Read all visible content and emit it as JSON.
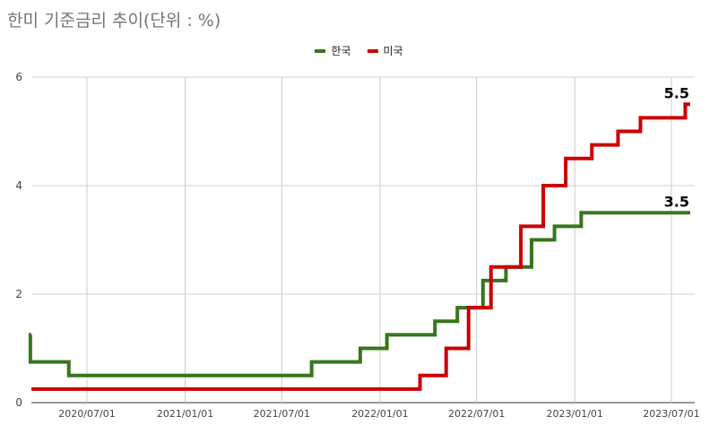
{
  "title": "한미 기준금리 추이(단위 : %)",
  "legend": [
    {
      "label": "한국",
      "color": "#38761d"
    },
    {
      "label": "미국",
      "color": "#cc0000"
    }
  ],
  "chart_data": {
    "type": "line",
    "title": "한미 기준금리 추이(단위 : %)",
    "xlabel": "",
    "ylabel": "",
    "ylim": [
      0,
      6
    ],
    "yticks": [
      0,
      2,
      4,
      6
    ],
    "xticks": [
      "2020/07/01",
      "2021/01/01",
      "2021/07/01",
      "2022/01/01",
      "2022/07/01",
      "2023/01/01",
      "2023/07/01"
    ],
    "xrange": [
      "2020/03/01",
      "2023/08/01"
    ],
    "grid": true,
    "legend_position": "top",
    "series": [
      {
        "name": "한국",
        "color": "#38761d",
        "step": true,
        "points": [
          {
            "x": "2020/03/01",
            "y": 1.25
          },
          {
            "x": "2020/03/17",
            "y": 0.75
          },
          {
            "x": "2020/05/28",
            "y": 0.5
          },
          {
            "x": "2021/08/26",
            "y": 0.75
          },
          {
            "x": "2021/11/25",
            "y": 1.0
          },
          {
            "x": "2022/01/14",
            "y": 1.25
          },
          {
            "x": "2022/04/14",
            "y": 1.5
          },
          {
            "x": "2022/05/26",
            "y": 1.75
          },
          {
            "x": "2022/07/13",
            "y": 2.25
          },
          {
            "x": "2022/08/25",
            "y": 2.5
          },
          {
            "x": "2022/10/12",
            "y": 3.0
          },
          {
            "x": "2022/11/24",
            "y": 3.25
          },
          {
            "x": "2023/01/13",
            "y": 3.5
          },
          {
            "x": "2023/08/01",
            "y": 3.5
          }
        ],
        "end_label": "3.5"
      },
      {
        "name": "미국",
        "color": "#cc0000",
        "step": true,
        "points": [
          {
            "x": "2020/03/01",
            "y": 0.25
          },
          {
            "x": "2022/03/17",
            "y": 0.5
          },
          {
            "x": "2022/05/05",
            "y": 1.0
          },
          {
            "x": "2022/06/16",
            "y": 1.75
          },
          {
            "x": "2022/07/28",
            "y": 2.5
          },
          {
            "x": "2022/09/22",
            "y": 3.25
          },
          {
            "x": "2022/11/03",
            "y": 4.0
          },
          {
            "x": "2022/12/15",
            "y": 4.5
          },
          {
            "x": "2023/02/02",
            "y": 4.75
          },
          {
            "x": "2023/03/23",
            "y": 5.0
          },
          {
            "x": "2023/05/04",
            "y": 5.25
          },
          {
            "x": "2023/07/27",
            "y": 5.5
          },
          {
            "x": "2023/08/01",
            "y": 5.5
          }
        ],
        "end_label": "5.5"
      }
    ]
  }
}
